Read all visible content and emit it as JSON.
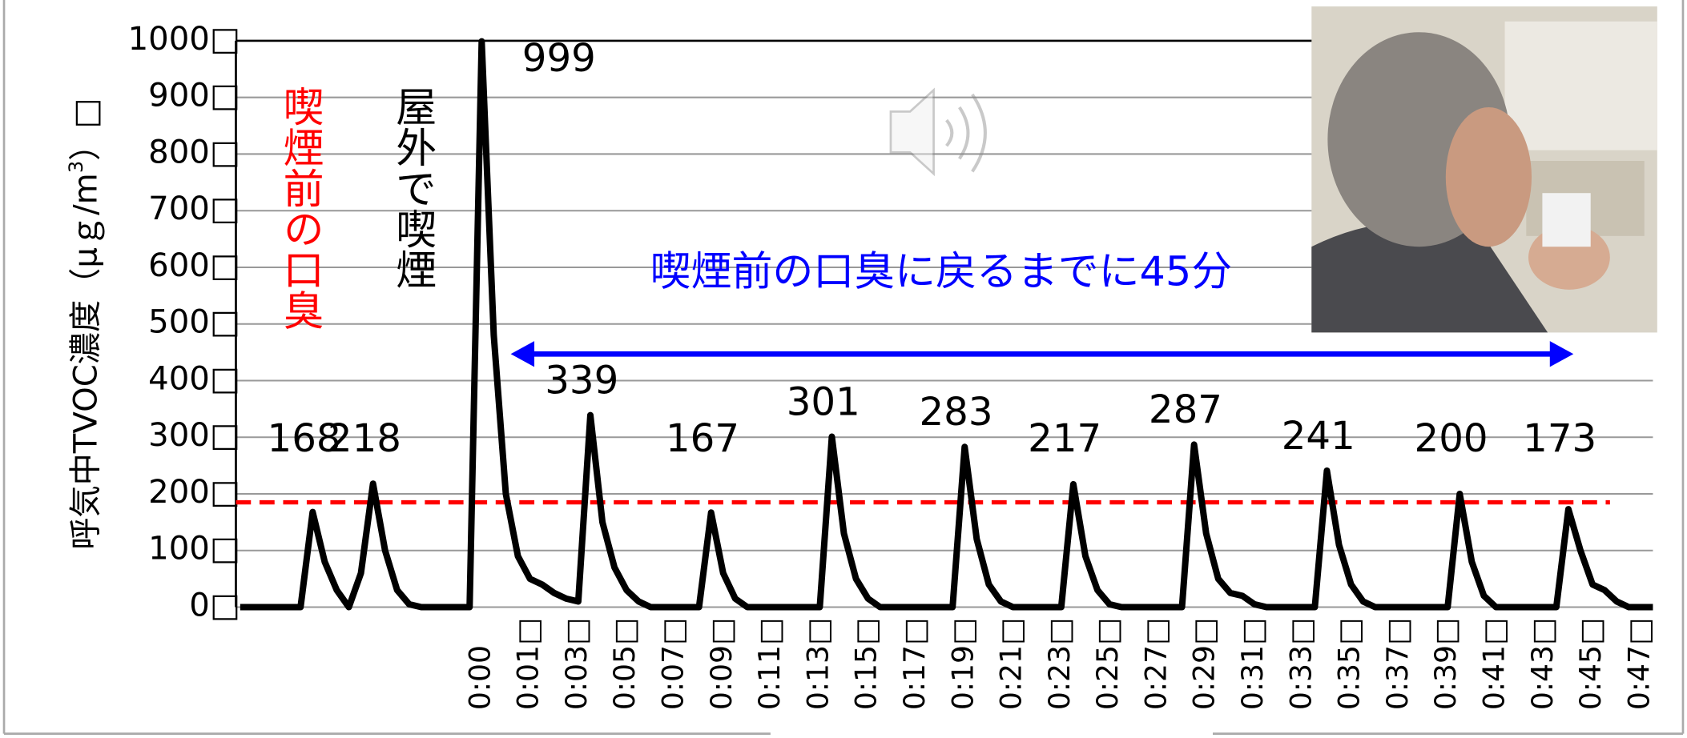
{
  "chart_data": {
    "type": "line",
    "ylabel": "呼気中TVOC濃度（μｇ/m",
    "ylabel_sup": "3",
    "ylabel_end": "）□",
    "annotations": [
      "喫煙前の口臭",
      "屋外で喫煙",
      "喫煙前の口臭に戻るまでに45分"
    ],
    "categories": [
      null,
      null,
      null,
      null,
      null,
      null,
      null,
      null,
      null,
      null,
      null,
      null,
      null,
      null,
      null,
      null,
      null,
      null,
      null,
      null,
      "0:00",
      null,
      null,
      null,
      "0:01□",
      null,
      null,
      null,
      "0:03□",
      null,
      null,
      null,
      "0:05□",
      null,
      null,
      null,
      "0:07□",
      null,
      null,
      null,
      "0:09□",
      null,
      null,
      null,
      "0:11□",
      null,
      null,
      null,
      "0:13□",
      null,
      null,
      null,
      "0:15□",
      null,
      null,
      null,
      "0:17□",
      null,
      null,
      null,
      "0:19□",
      null,
      null,
      null,
      "0:21□",
      null,
      null,
      null,
      "0:23□",
      null,
      null,
      null,
      "0:25□",
      null,
      null,
      null,
      "0:27□",
      null,
      null,
      null,
      "0:29□",
      null,
      null,
      null,
      "0:31□",
      null,
      null,
      null,
      "0:33□",
      null,
      null,
      null,
      "0:35□",
      null,
      null,
      null,
      "0:37□",
      null,
      null,
      null,
      "0:39□",
      null,
      null,
      null,
      "0:41□",
      null,
      null,
      null,
      "0:43□",
      null,
      null,
      null,
      "0:45□",
      null,
      null,
      null,
      "0:47□",
      null
    ],
    "values": [
      0,
      0,
      0,
      0,
      0,
      0,
      168,
      80,
      30,
      0,
      60,
      218,
      100,
      30,
      5,
      0,
      0,
      0,
      0,
      0,
      999,
      480,
      200,
      90,
      50,
      40,
      25,
      15,
      10,
      339,
      150,
      70,
      30,
      10,
      0,
      0,
      0,
      0,
      0,
      167,
      60,
      15,
      0,
      0,
      0,
      0,
      0,
      0,
      0,
      301,
      130,
      50,
      15,
      0,
      0,
      0,
      0,
      0,
      0,
      0,
      283,
      120,
      40,
      10,
      0,
      0,
      0,
      0,
      0,
      217,
      90,
      30,
      5,
      0,
      0,
      0,
      0,
      0,
      0,
      287,
      130,
      50,
      25,
      20,
      5,
      0,
      0,
      0,
      0,
      0,
      241,
      110,
      40,
      10,
      0,
      0,
      0,
      0,
      0,
      0,
      0,
      200,
      80,
      20,
      0,
      0,
      0,
      0,
      0,
      0,
      173,
      100,
      40,
      30,
      10,
      0,
      0,
      0
    ],
    "value_labels": [
      null,
      null,
      null,
      null,
      null,
      null,
      "168",
      null,
      null,
      null,
      null,
      "218",
      null,
      null,
      null,
      null,
      null,
      null,
      null,
      null,
      "999",
      null,
      null,
      null,
      null,
      null,
      null,
      null,
      null,
      "339",
      null,
      null,
      null,
      null,
      null,
      null,
      null,
      null,
      null,
      "167",
      null,
      null,
      null,
      null,
      null,
      null,
      null,
      null,
      null,
      "301",
      null,
      null,
      null,
      null,
      null,
      null,
      null,
      null,
      null,
      null,
      "283",
      null,
      null,
      null,
      null,
      null,
      null,
      null,
      null,
      "217",
      null,
      null,
      null,
      null,
      null,
      null,
      null,
      null,
      null,
      "287",
      null,
      null,
      null,
      null,
      null,
      null,
      null,
      null,
      null,
      null,
      "241",
      null,
      null,
      null,
      null,
      null,
      null,
      null,
      null,
      null,
      null,
      "200",
      null,
      null,
      null,
      null,
      null,
      null,
      null,
      null,
      "173",
      null,
      null,
      null,
      null,
      null,
      null,
      null
    ],
    "color": "#000000",
    "reference_line": {
      "value": 185,
      "color": "#ff0000"
    },
    "ylim": [
      0,
      1000
    ],
    "yticks": [
      {
        "value": 0,
        "label": "0□"
      },
      {
        "value": 100,
        "label": "100□"
      },
      {
        "value": 200,
        "label": "200□"
      },
      {
        "value": 300,
        "label": "300□"
      },
      {
        "value": 400,
        "label": "400□"
      },
      {
        "value": 500,
        "label": "500□"
      },
      {
        "value": 600,
        "label": "600□"
      },
      {
        "value": 700,
        "label": "700□"
      },
      {
        "value": 800,
        "label": "800□"
      },
      {
        "value": 900,
        "label": "900□"
      },
      {
        "value": 1000,
        "label": "1000□"
      }
    ],
    "grid": true
  }
}
